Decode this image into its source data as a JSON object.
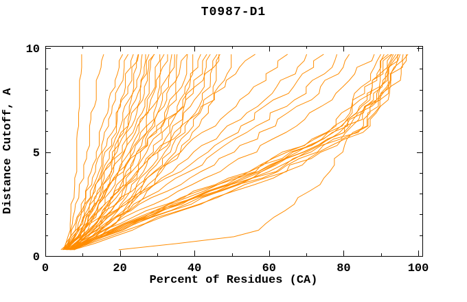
{
  "chart_data": {
    "type": "line",
    "title": "T0987-D1",
    "xlabel": "Percent of Residues (CA)",
    "ylabel": "Distance Cutoff, A",
    "xlim": [
      0,
      100
    ],
    "ylim": [
      0,
      10
    ],
    "xticks_major": [
      0,
      20,
      40,
      60,
      80,
      100
    ],
    "xticks_minor": [
      10,
      30,
      50,
      70,
      90
    ],
    "yticks_major": [
      0,
      5,
      10
    ],
    "yticks_minor": [
      1,
      2,
      3,
      4,
      6,
      7,
      8,
      9
    ],
    "grid": false,
    "legend": "none",
    "line_color": "#ff8c00",
    "axis_color": "#000000",
    "background_color": "#ffffff",
    "series_note": "Each series = percent of residues (CA) within distance cutoff; values sampled at the cutoffs listed below.",
    "cutoffs": [
      0.3,
      1,
      2,
      4,
      6,
      8,
      9.7
    ],
    "series": [
      [
        4.5,
        6,
        7,
        8,
        8.5,
        9,
        9.5
      ],
      [
        4.5,
        6.5,
        8,
        10,
        12,
        13.5,
        15
      ],
      [
        5,
        7,
        9,
        12,
        15,
        18,
        20
      ],
      [
        5,
        7.5,
        9.5,
        13,
        16.5,
        19.5,
        22
      ],
      [
        5.5,
        8,
        10,
        14,
        18,
        21,
        23
      ],
      [
        5,
        8,
        10.5,
        14.5,
        18.5,
        22,
        24.5
      ],
      [
        5.5,
        8.5,
        11,
        15,
        19.5,
        23,
        25
      ],
      [
        6,
        9,
        11.5,
        16,
        20.5,
        24,
        26
      ],
      [
        5,
        8,
        11,
        16,
        21,
        25,
        27
      ],
      [
        6,
        9.5,
        12,
        17,
        22,
        25.5,
        27.5
      ],
      [
        5.5,
        9,
        12.5,
        17.5,
        22.5,
        26.5,
        28.5
      ],
      [
        6,
        10,
        13,
        18,
        23.5,
        27.5,
        29.5
      ],
      [
        6.5,
        10,
        13.5,
        19,
        24.5,
        28.5,
        30.5
      ],
      [
        5.5,
        9.5,
        13,
        19,
        25,
        29.5,
        31.5
      ],
      [
        6,
        10.5,
        14,
        20,
        26,
        30.5,
        32.5
      ],
      [
        6.5,
        11,
        15,
        21,
        27,
        31.5,
        33.5
      ],
      [
        7,
        11.5,
        15.5,
        22,
        28,
        32.5,
        35
      ],
      [
        6,
        10.5,
        15,
        22,
        28.5,
        33.5,
        36
      ],
      [
        6.5,
        11,
        16,
        23,
        29.5,
        35,
        37.5
      ],
      [
        7,
        12,
        17,
        24,
        31,
        36,
        38.5
      ],
      [
        6.5,
        12,
        17,
        25,
        32,
        37.5,
        40
      ],
      [
        7,
        12.5,
        18,
        26,
        33,
        38.5,
        41
      ],
      [
        7.5,
        13,
        19,
        27,
        34.5,
        40,
        42.5
      ],
      [
        7,
        13,
        19.5,
        28,
        35.5,
        41.5,
        44
      ],
      [
        7.5,
        14,
        20.5,
        29,
        37,
        43,
        45.5
      ],
      [
        8,
        14.5,
        21,
        30,
        38,
        44.5,
        47
      ],
      [
        7.5,
        15,
        22,
        31.5,
        40,
        46.5,
        50
      ],
      [
        5.5,
        13,
        25,
        53,
        76,
        85,
        90
      ],
      [
        6,
        14,
        26,
        54,
        77,
        86,
        90.5
      ],
      [
        6,
        14.5,
        27,
        55,
        77.5,
        87,
        91
      ],
      [
        6.5,
        15,
        27.5,
        56,
        78,
        87.5,
        91.5
      ],
      [
        6,
        15,
        28,
        57,
        79,
        88,
        92
      ],
      [
        6.5,
        15.5,
        28.5,
        57.5,
        80,
        88.5,
        92.5
      ],
      [
        7,
        16,
        29,
        58,
        81,
        89,
        93
      ],
      [
        6.5,
        16,
        29.5,
        59,
        81.5,
        89.5,
        93.5
      ],
      [
        7,
        16.5,
        30,
        60,
        82,
        90,
        94
      ],
      [
        7.5,
        17,
        31,
        61,
        83,
        91,
        95
      ],
      [
        5.5,
        10,
        17,
        33,
        48,
        62,
        71
      ],
      [
        6,
        11,
        18,
        35,
        51,
        65,
        74
      ],
      [
        6,
        11.5,
        20,
        38,
        55,
        70,
        79
      ],
      [
        6.5,
        12,
        21,
        41,
        59,
        74,
        83
      ],
      [
        7,
        13,
        23,
        46,
        65,
        80,
        88
      ],
      [
        7.5,
        18,
        33,
        63,
        84,
        92,
        96
      ],
      [
        8,
        19,
        34,
        64,
        85,
        93,
        96.5
      ],
      [
        5,
        9,
        15,
        29,
        43,
        56,
        64
      ],
      [
        19,
        55,
        63,
        76,
        84,
        90,
        94
      ],
      [
        5,
        8,
        13,
        24,
        36,
        47,
        55
      ],
      [
        4.5,
        7.5,
        11,
        20,
        30,
        40,
        47
      ]
    ]
  }
}
